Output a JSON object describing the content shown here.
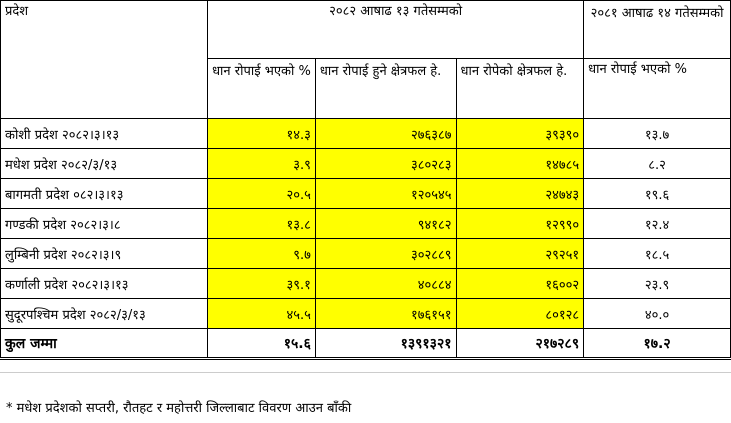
{
  "headers": {
    "province": "प्रदेश",
    "group_2082": "२०८२ आषाढ १३ गतेसम्मको",
    "group_2081": "२०८१ आषाढ १४ गतेसम्मको",
    "col_percent": "धान रोपाई भएको %",
    "col_area_target": "धान रोपाई हुने क्षेत्रफल हे.",
    "col_area_planted": "धान रोपेको क्षेत्रफल हे.",
    "col_percent_prev": "धान रोपाई भएको %"
  },
  "rows": [
    {
      "province": "कोशी प्रदेश २०८२।३।१३",
      "percent": "१४.३",
      "area_target": "२७६३८७",
      "area_planted": "३९३९०",
      "percent_prev": "१३.७"
    },
    {
      "province": "मधेश प्रदेश २०८२/३/१३",
      "percent": "३.९",
      "area_target": "३८०२८३",
      "area_planted": "१४७८५",
      "percent_prev": "८.२"
    },
    {
      "province": "बागमती प्रदेश ०८२।३।१३",
      "percent": "२०.५",
      "area_target": "१२०५४५",
      "area_planted": "२४७४३",
      "percent_prev": "१९.६"
    },
    {
      "province": "गण्डकी प्रदेश २०८२।३।८",
      "percent": "१३.८",
      "area_target": "९४१८२",
      "area_planted": "१२९९०",
      "percent_prev": "१२.४"
    },
    {
      "province": "लुम्बिनी प्रदेश २०८२।३।९",
      "percent": "९.७",
      "area_target": "३०२८८९",
      "area_planted": "२९२५१",
      "percent_prev": "१८.५"
    },
    {
      "province": "कर्णाली प्रदेश २०८२।३।१३",
      "percent": "३९.१",
      "area_target": "४०८८४",
      "area_planted": "१६००२",
      "percent_prev": "२३.९"
    },
    {
      "province": "सुदूरपश्चिम प्रदेश २०८२/३/१३",
      "percent": "४५.५",
      "area_target": "१७६१५१",
      "area_planted": "८०१२८",
      "percent_prev": "४०.०"
    }
  ],
  "total": {
    "label": "कुल जम्मा",
    "percent": "१५.६",
    "area_target": "१३९१३२१",
    "area_planted": "२१७२८९",
    "percent_prev": "१७.२"
  },
  "footnote": "* मधेश प्रदेशको सप्तरी, रौतहट र महोत्तरी जिल्लाबाट विवरण आउन बाँकी",
  "colors": {
    "highlight": "#ffff00"
  }
}
